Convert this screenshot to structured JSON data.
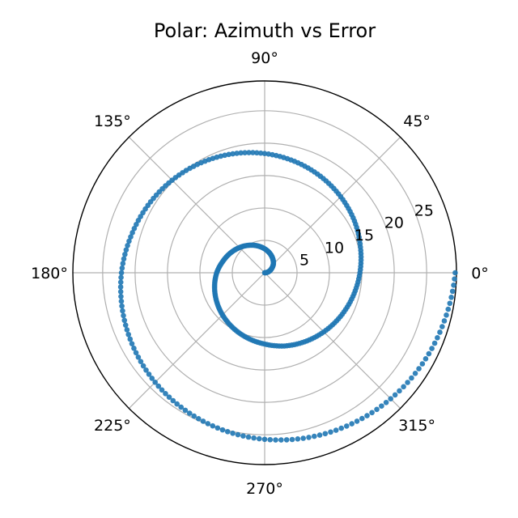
{
  "chart_data": {
    "type": "scatter",
    "projection": "polar",
    "title": "Polar: Azimuth vs Error",
    "theta_unit": "degrees",
    "theta_ticks": [
      0,
      45,
      90,
      135,
      180,
      225,
      270,
      315
    ],
    "theta_tick_labels": [
      "0°",
      "45°",
      "90°",
      "135°",
      "180°",
      "225°",
      "270°",
      "315°"
    ],
    "r_ticks": [
      5,
      10,
      15,
      20,
      25
    ],
    "r_tick_labels": [
      "5",
      "10",
      "15",
      "20",
      "25"
    ],
    "rlim": [
      0,
      29.6
    ],
    "grid": true,
    "series": [
      {
        "color": "#1f77b4",
        "theta": [
          0,
          15,
          30,
          45,
          60,
          75,
          90,
          105,
          120,
          135,
          150,
          165,
          180,
          195,
          210,
          225,
          240,
          255,
          270,
          285,
          300,
          315,
          330,
          345,
          360,
          375,
          390,
          405,
          420,
          435,
          450,
          465,
          480,
          495,
          510,
          525,
          540,
          555,
          570,
          585,
          600,
          615,
          630,
          645,
          660,
          675,
          690,
          705,
          720
        ],
        "r": [
          0.0,
          0.6,
          1.2,
          1.9,
          2.5,
          3.1,
          3.7,
          4.3,
          4.9,
          5.5,
          6.1,
          6.7,
          7.4,
          8.0,
          8.6,
          9.2,
          9.8,
          10.4,
          11.0,
          11.7,
          12.3,
          12.9,
          13.5,
          14.1,
          14.7,
          15.3,
          16.0,
          16.6,
          17.2,
          17.8,
          18.4,
          19.0,
          19.6,
          20.2,
          20.8,
          21.4,
          22.1,
          22.7,
          23.3,
          23.9,
          24.5,
          25.1,
          25.7,
          26.3,
          26.9,
          27.5,
          28.1,
          28.7,
          29.4
        ]
      }
    ]
  }
}
